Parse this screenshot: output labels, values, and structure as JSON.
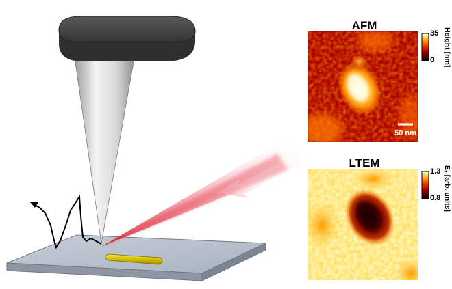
{
  "afm_panel": {
    "title": "AFM",
    "colorbar_max": "35",
    "colorbar_min": "0",
    "colorbar_label": "Height [nm]",
    "scale_bar_label": "50 nm"
  },
  "ltem_panel": {
    "title": "LTEM",
    "colorbar_max": "1.3",
    "colorbar_min": "0.8",
    "colorbar_label_base": "E",
    "colorbar_label_sub": "z",
    "colorbar_label_rest": " [arb. units]"
  },
  "colors": {
    "cantilever": "#3a3a3a",
    "tip": "#c8c8c8",
    "substrate": "#b7c0cb",
    "nanorod": "#d8c400",
    "laser": "#e03040",
    "afm_hot": "#ffe080",
    "ltem_low": "#2a0000"
  }
}
